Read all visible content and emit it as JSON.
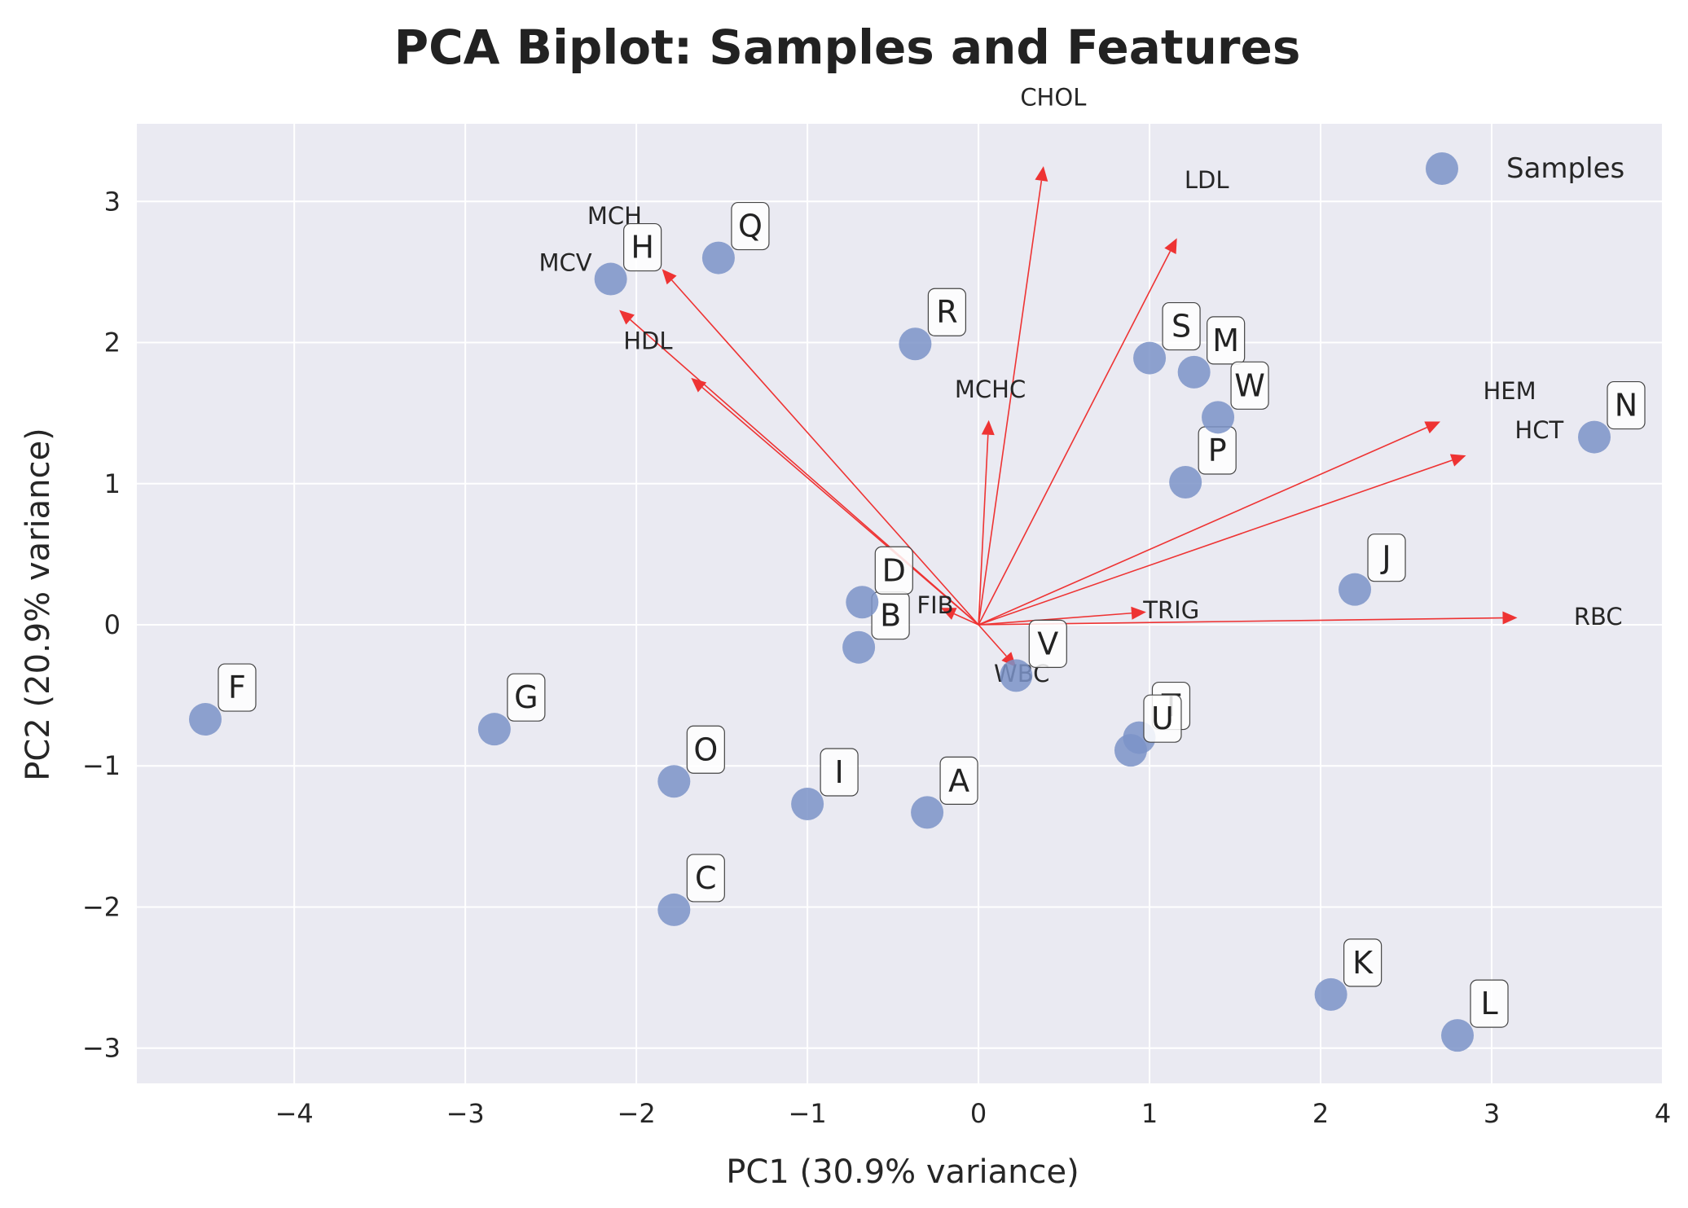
{
  "chart_data": {
    "type": "scatter",
    "title": "PCA Biplot: Samples and Features",
    "xlabel": "PC1 (30.9% variance)",
    "ylabel": "PC2 (20.9% variance)",
    "xlim": [
      -4.92,
      4.0
    ],
    "ylim": [
      -3.25,
      3.55
    ],
    "xticks": [
      -4,
      -3,
      -2,
      -1,
      0,
      1,
      2,
      3,
      4
    ],
    "yticks": [
      -3,
      -2,
      -1,
      0,
      1,
      2,
      3
    ],
    "grid": true,
    "legend": {
      "position": "top-right",
      "entries": [
        "Samples"
      ]
    },
    "colors": {
      "points": "#7b93c8",
      "arrows": "#ee3333",
      "plot_background": "#eaeaf2",
      "grid": "#ffffff"
    },
    "samples": [
      {
        "label": "A",
        "x": -0.3,
        "y": -1.33
      },
      {
        "label": "B",
        "x": -0.7,
        "y": -0.16
      },
      {
        "label": "C",
        "x": -1.78,
        "y": -2.02
      },
      {
        "label": "D",
        "x": -0.68,
        "y": 0.16
      },
      {
        "label": "F",
        "x": -4.52,
        "y": -0.67
      },
      {
        "label": "G",
        "x": -2.83,
        "y": -0.74
      },
      {
        "label": "H",
        "x": -2.15,
        "y": 2.45
      },
      {
        "label": "I",
        "x": -1.0,
        "y": -1.27
      },
      {
        "label": "J",
        "x": 2.2,
        "y": 0.25
      },
      {
        "label": "K",
        "x": 2.06,
        "y": -2.62
      },
      {
        "label": "L",
        "x": 2.8,
        "y": -2.91
      },
      {
        "label": "M",
        "x": 1.26,
        "y": 1.79
      },
      {
        "label": "N",
        "x": 3.6,
        "y": 1.33
      },
      {
        "label": "O",
        "x": -1.78,
        "y": -1.11
      },
      {
        "label": "P",
        "x": 1.21,
        "y": 1.01
      },
      {
        "label": "Q",
        "x": -1.52,
        "y": 2.6
      },
      {
        "label": "R",
        "x": -0.37,
        "y": 1.99
      },
      {
        "label": "S",
        "x": 1.0,
        "y": 1.89
      },
      {
        "label": "T",
        "x": 0.94,
        "y": -0.8
      },
      {
        "label": "U",
        "x": 0.89,
        "y": -0.89
      },
      {
        "label": "V",
        "x": 0.22,
        "y": -0.36
      },
      {
        "label": "W",
        "x": 1.4,
        "y": 1.47
      }
    ],
    "features": [
      {
        "name": "CHOL",
        "x": 0.38,
        "y": 3.25
      },
      {
        "name": "LDL",
        "x": 1.16,
        "y": 2.74
      },
      {
        "name": "MCH",
        "x": -1.85,
        "y": 2.52
      },
      {
        "name": "MCV",
        "x": -2.1,
        "y": 2.23
      },
      {
        "name": "HDL",
        "x": -1.68,
        "y": 1.75
      },
      {
        "name": "MCHC",
        "x": 0.06,
        "y": 1.45
      },
      {
        "name": "HEM",
        "x": 2.7,
        "y": 1.44
      },
      {
        "name": "HCT",
        "x": 2.85,
        "y": 1.2
      },
      {
        "name": "FIB",
        "x": -0.22,
        "y": 0.12
      },
      {
        "name": "TRIG",
        "x": 0.98,
        "y": 0.09
      },
      {
        "name": "RBC",
        "x": 3.15,
        "y": 0.05
      },
      {
        "name": "WBC",
        "x": 0.22,
        "y": -0.3
      }
    ]
  }
}
